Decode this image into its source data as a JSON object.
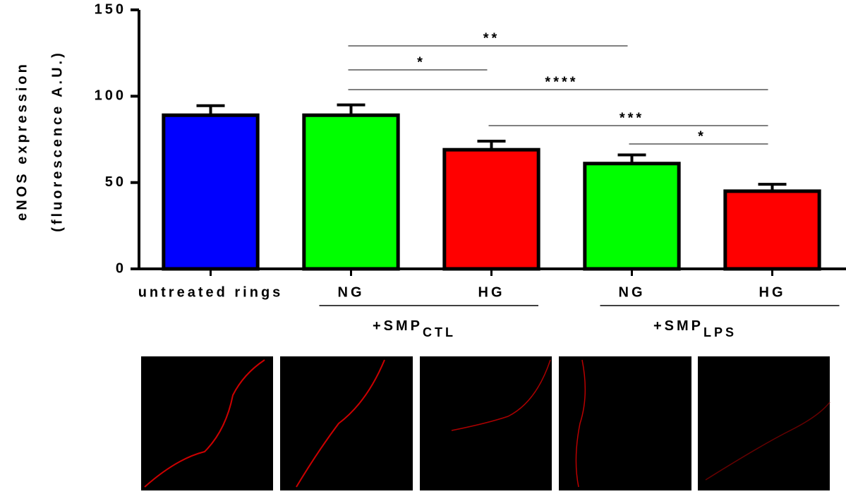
{
  "chart_data": {
    "type": "bar",
    "ylabel": [
      "eNOS expression",
      "(fluorescence A.U.)"
    ],
    "categories": [
      "untreated rings",
      "NG",
      "HG",
      "NG",
      "HG"
    ],
    "values": [
      89,
      89,
      69,
      61,
      45
    ],
    "errors": [
      5.5,
      6,
      5,
      5,
      4
    ],
    "colors": [
      "#0000ff",
      "#00ff00",
      "#ff0000",
      "#00ff00",
      "#ff0000"
    ],
    "ylim": [
      0,
      150
    ],
    "yticks": [
      0,
      50,
      100,
      150
    ],
    "groups": [
      {
        "label": "+SMP",
        "sub": "CTL",
        "from": 1,
        "to": 2
      },
      {
        "label": "+SMP",
        "sub": "LPS",
        "from": 3,
        "to": 4
      }
    ],
    "significance": [
      {
        "from": 1,
        "to": 3,
        "label": "**"
      },
      {
        "from": 1,
        "to": 2,
        "label": "*"
      },
      {
        "from": 1,
        "to": 4,
        "label": "****"
      },
      {
        "from": 2,
        "to": 4,
        "label": "***"
      },
      {
        "from": 3,
        "to": 4,
        "label": "*"
      }
    ]
  }
}
